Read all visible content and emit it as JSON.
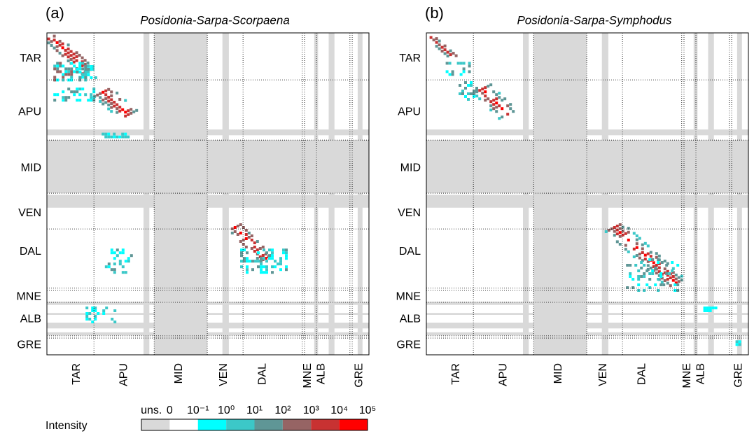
{
  "chart_data": {
    "type": "heatmap",
    "panels": [
      {
        "label": "(a)",
        "title": "Posidonia-Sarpa-Scorpaena"
      },
      {
        "label": "(b)",
        "title": "Posidonia-Sarpa-Symphodus"
      }
    ],
    "regions": [
      "TAR",
      "APU",
      "MID",
      "VEN",
      "DAL",
      "MNE",
      "ALB",
      "GRE"
    ],
    "colorbar": {
      "title": "Intensity",
      "labels": [
        "uns.",
        "0",
        "10⁻¹",
        "10⁰",
        "10¹",
        "10²",
        "10³",
        "10⁴",
        "10⁵"
      ],
      "colors": [
        "#d9d9d9",
        "#ffffff",
        "#00ffff",
        "#3cc8c8",
        "#5f9696",
        "#966464",
        "#c83232",
        "#ff0000"
      ]
    }
  }
}
